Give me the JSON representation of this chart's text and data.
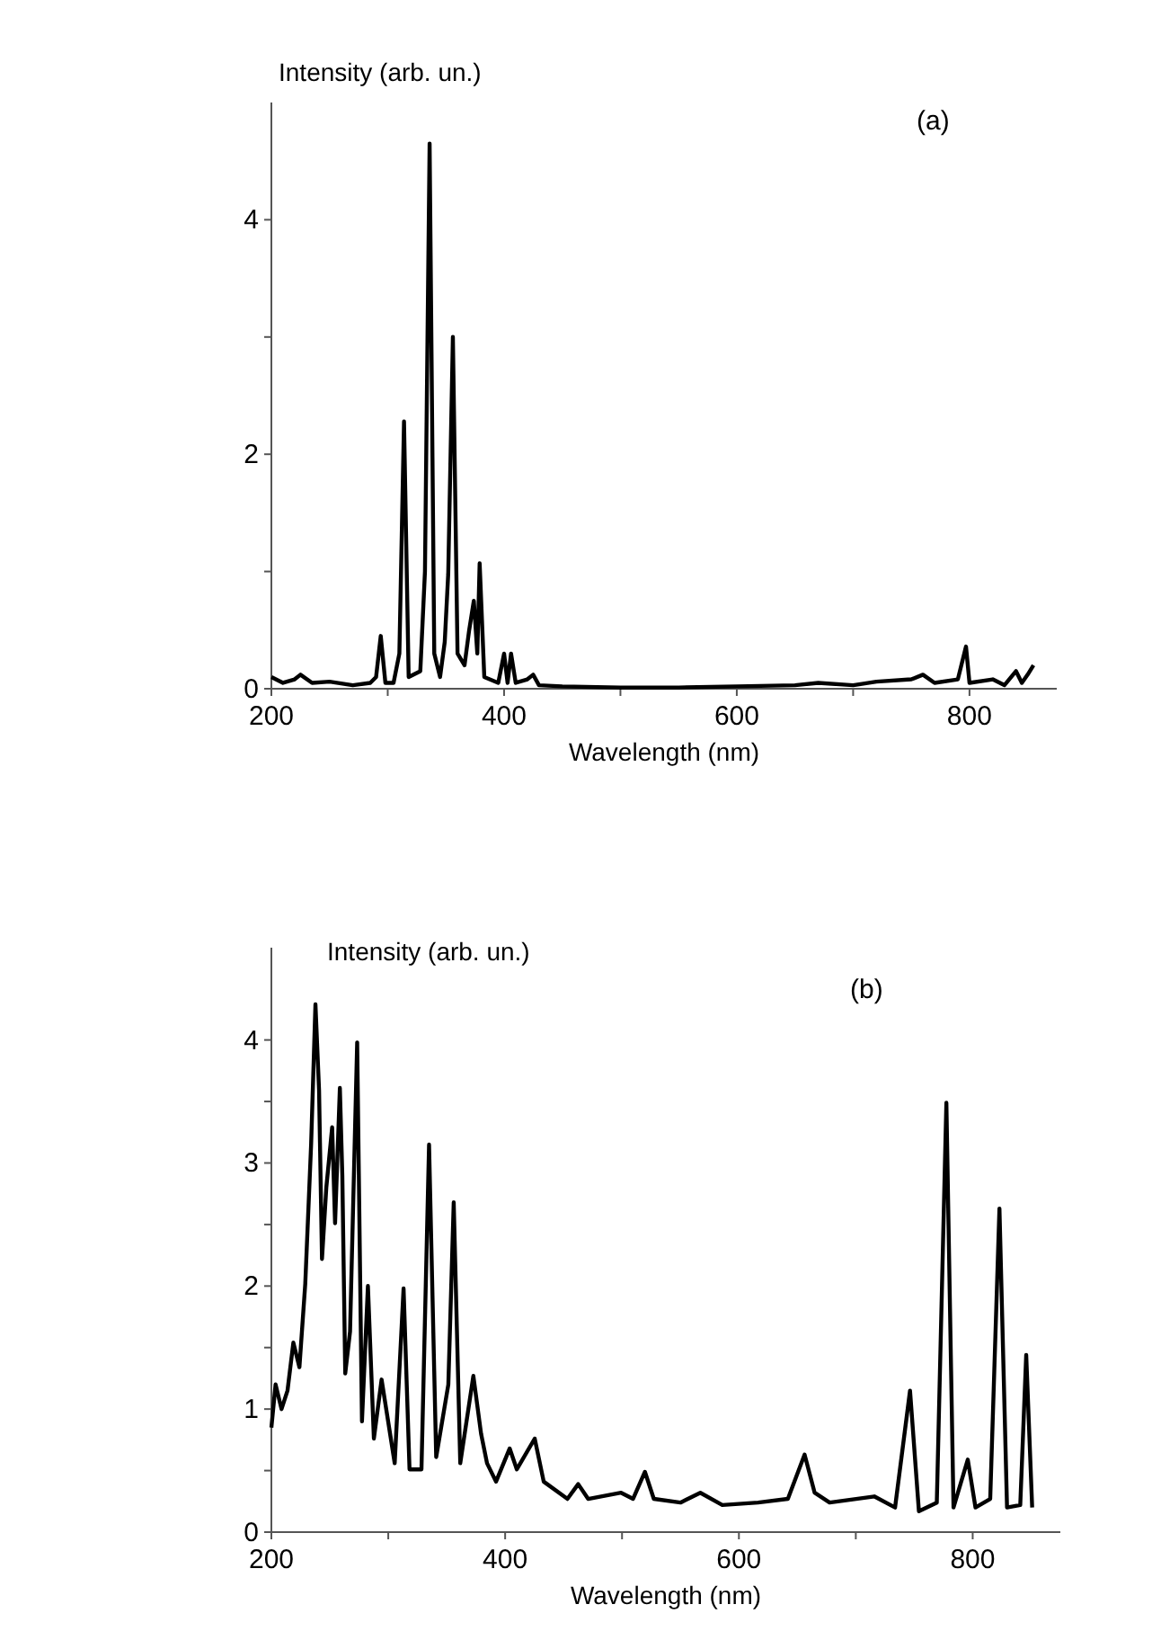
{
  "chart_data": [
    {
      "type": "line",
      "ylabel": "Intensity (arb. un.)",
      "xlabel": "Wavelength (nm)",
      "annotations": [
        "(a)"
      ],
      "xlim": [
        200,
        875
      ],
      "ylim": [
        0,
        5
      ],
      "xticks": [
        200,
        {
          "value": 300,
          "label": null
        },
        400,
        {
          "value": 500,
          "label": null
        },
        600,
        {
          "value": 700,
          "label": null
        },
        800
      ],
      "yticks": [
        0,
        {
          "value": 1,
          "label": null
        },
        2,
        {
          "value": 3,
          "label": null
        },
        4
      ],
      "series": [
        {
          "color": "#000000",
          "x": [
            200,
            210,
            220,
            225,
            235,
            250,
            270,
            285,
            290,
            294,
            298,
            305,
            310,
            314,
            318,
            328,
            332,
            336,
            340,
            345,
            349,
            352,
            356,
            360,
            366,
            370,
            374,
            377,
            379,
            383,
            395,
            400,
            403,
            406,
            410,
            420,
            425,
            430,
            450,
            500,
            550,
            600,
            650,
            670,
            700,
            720,
            750,
            760,
            770,
            790,
            797,
            800,
            820,
            830,
            840,
            845,
            850,
            855
          ],
          "values": [
            0.1,
            0.05,
            0.08,
            0.12,
            0.05,
            0.06,
            0.03,
            0.05,
            0.1,
            0.45,
            0.05,
            0.05,
            0.3,
            2.28,
            0.1,
            0.15,
            1.0,
            4.65,
            0.3,
            0.1,
            0.4,
            0.98,
            3.0,
            0.3,
            0.2,
            0.5,
            0.75,
            0.3,
            1.07,
            0.1,
            0.05,
            0.3,
            0.05,
            0.3,
            0.05,
            0.08,
            0.12,
            0.03,
            0.02,
            0.01,
            0.01,
            0.02,
            0.03,
            0.05,
            0.03,
            0.06,
            0.08,
            0.12,
            0.05,
            0.08,
            0.36,
            0.05,
            0.08,
            0.03,
            0.15,
            0.05,
            0.12,
            0.2
          ]
        }
      ]
    },
    {
      "type": "line",
      "ylabel": "Intensity (arb. un.)",
      "xlabel": "Wavelength (nm)",
      "annotations": [
        "(b)"
      ],
      "xlim": [
        200,
        875
      ],
      "ylim": [
        0,
        4.75
      ],
      "xticks": [
        200,
        {
          "value": 300,
          "label": null
        },
        400,
        {
          "value": 500,
          "label": null
        },
        600,
        {
          "value": 700,
          "label": null
        },
        800
      ],
      "yticks": [
        0,
        {
          "value": 0.5,
          "label": null
        },
        1,
        {
          "value": 1.5,
          "label": null
        },
        2,
        {
          "value": 2.5,
          "label": null
        },
        3,
        {
          "value": 3.5,
          "label": null
        },
        4
      ],
      "series": [
        {
          "color": "#000000",
          "x": [
            200,
            203.6,
            208.7,
            213.8,
            218.8,
            224,
            229,
            234,
            237.7,
            240.8,
            243.3,
            247,
            252,
            254.5,
            258.6,
            260.7,
            263.2,
            267.3,
            273.4,
            277.5,
            282.6,
            287.7,
            294.3,
            305.5,
            313.1,
            318.2,
            328.4,
            334.9,
            341,
            351.4,
            356,
            361.6,
            372.8,
            379.4,
            384.5,
            392.2,
            403.9,
            410,
            425.3,
            433,
            453.3,
            462.5,
            471,
            499.2,
            509.4,
            519.6,
            527.2,
            550,
            567,
            585.8,
            616.4,
            641.9,
            656.2,
            664.8,
            677.6,
            715.8,
            733.6,
            746.4,
            754,
            769.3,
            777.5,
            783.6,
            795.8,
            802.4,
            815,
            822.9,
            829.4,
            840.7,
            845.8,
            850.9
          ],
          "values": [
            0.85,
            1.2,
            1.0,
            1.15,
            1.54,
            1.34,
            2.02,
            3.15,
            4.29,
            3.59,
            2.22,
            2.8,
            3.29,
            2.51,
            3.61,
            2.9,
            1.29,
            1.63,
            3.98,
            0.9,
            2.0,
            0.76,
            1.24,
            0.56,
            1.98,
            0.51,
            0.51,
            3.15,
            0.61,
            1.2,
            2.68,
            0.56,
            1.27,
            0.8,
            0.56,
            0.41,
            0.68,
            0.51,
            0.76,
            0.41,
            0.27,
            0.39,
            0.27,
            0.32,
            0.27,
            0.49,
            0.27,
            0.24,
            0.32,
            0.22,
            0.24,
            0.27,
            0.63,
            0.32,
            0.24,
            0.29,
            0.2,
            1.15,
            0.17,
            0.24,
            3.49,
            0.2,
            0.59,
            0.2,
            0.27,
            2.63,
            0.2,
            0.22,
            1.44,
            0.2
          ]
        }
      ]
    }
  ]
}
